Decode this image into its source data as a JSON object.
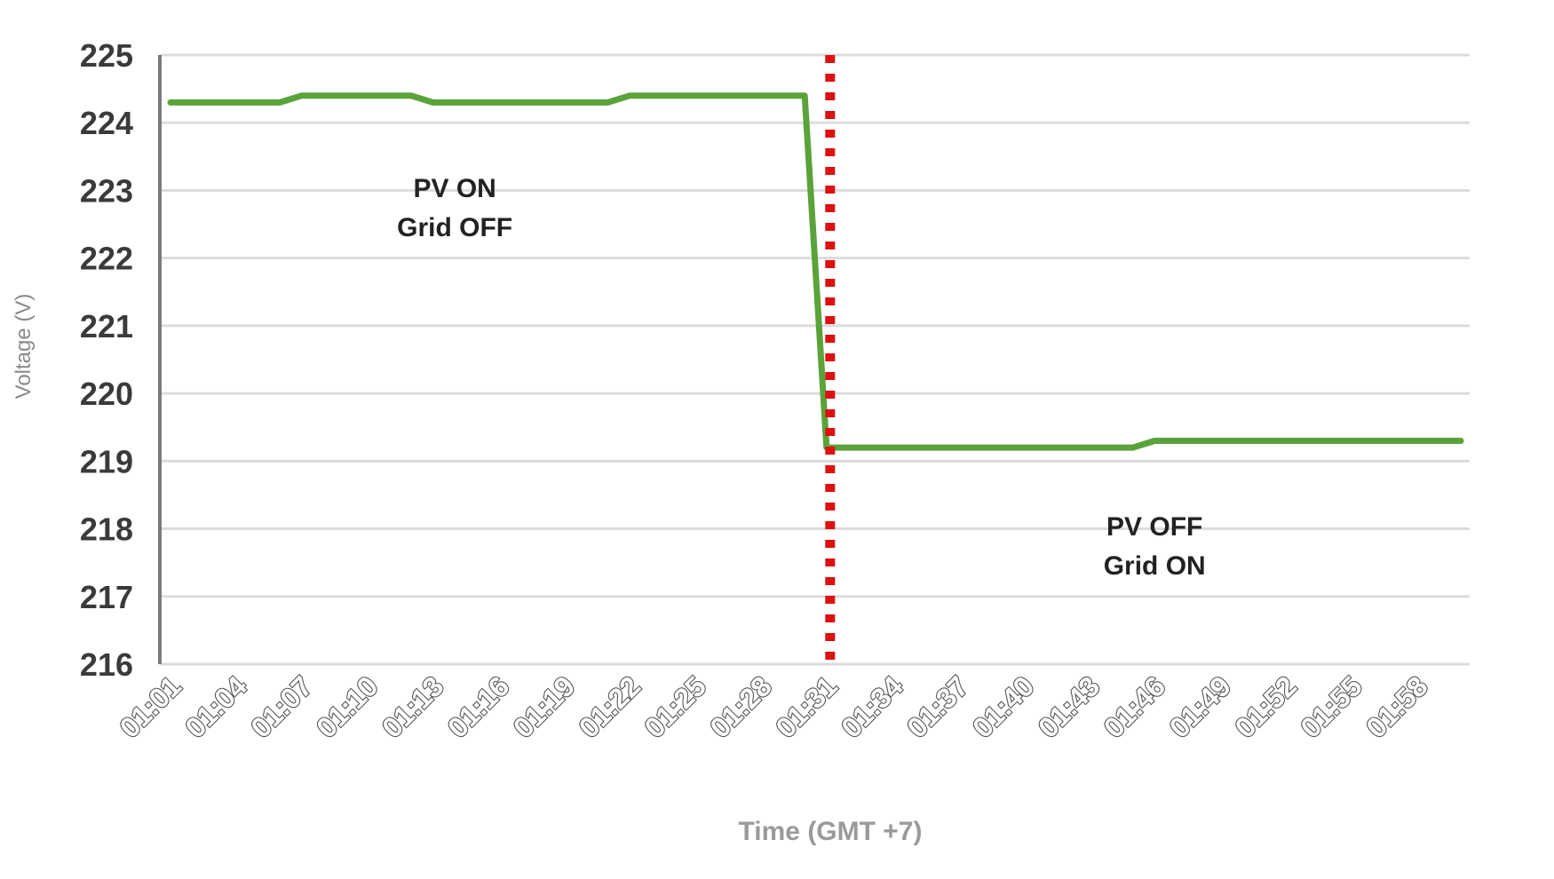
{
  "chart_data": {
    "type": "line",
    "title": "",
    "xlabel": "Time (GMT +7)",
    "ylabel": "Voltage (V)",
    "ylim": [
      216,
      225
    ],
    "yticks": [
      "216",
      "217",
      "218",
      "219",
      "220",
      "221",
      "222",
      "223",
      "224",
      "225"
    ],
    "xticks": [
      "01:01",
      "01:04",
      "01:07",
      "01:10",
      "01:13",
      "01:16",
      "01:19",
      "01:22",
      "01:25",
      "01:28",
      "01:31",
      "01:34",
      "01:37",
      "01:40",
      "01:43",
      "01:46",
      "01:49",
      "01:52",
      "01:55",
      "01:58"
    ],
    "grid": true,
    "legend": "none",
    "series": [
      {
        "color": "#5aa33a",
        "x": [
          "01:01",
          "01:06",
          "01:07",
          "01:12",
          "01:13",
          "01:21",
          "01:22",
          "01:30",
          "01:31",
          "01:45",
          "01:46",
          "02:00"
        ],
        "y": [
          224.3,
          224.3,
          224.4,
          224.4,
          224.3,
          224.3,
          224.4,
          224.4,
          219.2,
          219.2,
          219.3,
          219.3
        ]
      }
    ],
    "vline": {
      "x": "01:31",
      "color": "#dd1111",
      "style": "dotted"
    },
    "annotations": [
      {
        "lines": [
          "PV ON",
          "Grid OFF"
        ],
        "x": "01:14",
        "y": 222.9
      },
      {
        "lines": [
          "PV OFF",
          "Grid ON"
        ],
        "x": "01:46",
        "y": 217.9
      }
    ]
  }
}
